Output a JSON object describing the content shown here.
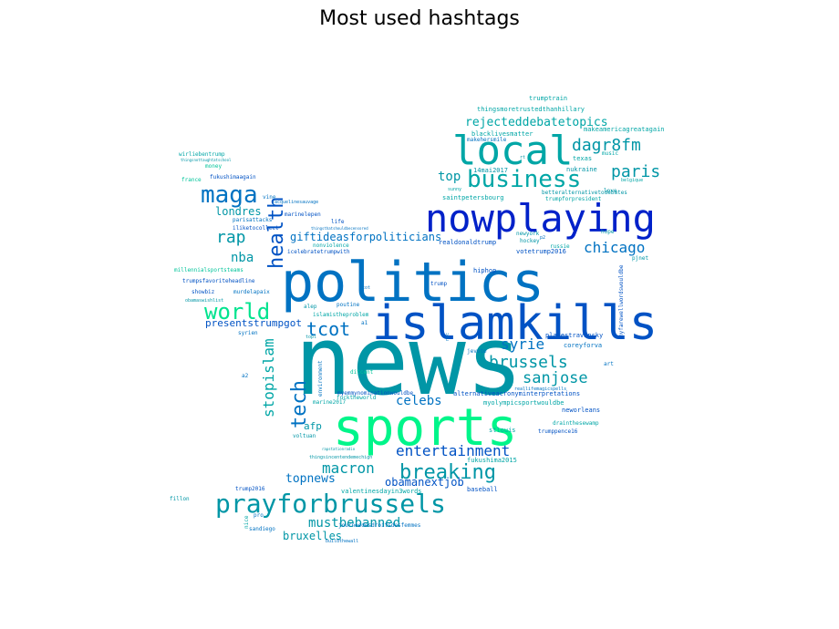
{
  "chart_data": {
    "type": "wordcloud",
    "title": "Most used hashtags",
    "palette": [
      "#0021c9",
      "#0052c4",
      "#0072c2",
      "#008fb0",
      "#00a6a6",
      "#00c49a",
      "#00e38e",
      "#00f58a"
    ],
    "words": [
      {
        "text": "news",
        "weight": 100,
        "color": "#0096a6"
      },
      {
        "text": "politics",
        "weight": 92,
        "color": "#0072c2"
      },
      {
        "text": "sports",
        "weight": 76,
        "color": "#00f58a"
      },
      {
        "text": "islamkills",
        "weight": 66,
        "color": "#0052c4"
      },
      {
        "text": "nowplaying",
        "weight": 52,
        "color": "#0021c9"
      },
      {
        "text": "local",
        "weight": 50,
        "color": "#00a6a6"
      },
      {
        "text": "prayforbrussels",
        "weight": 34,
        "color": "#0096a6"
      },
      {
        "text": "business",
        "weight": 30,
        "color": "#00a6a6"
      },
      {
        "text": "maga",
        "weight": 30,
        "color": "#0072c2"
      },
      {
        "text": "world",
        "weight": 28,
        "color": "#00e38e"
      },
      {
        "text": "breaking",
        "weight": 24,
        "color": "#0096a6"
      },
      {
        "text": "health",
        "weight": 24,
        "color": "#0052c4"
      },
      {
        "text": "tech",
        "weight": 22,
        "color": "#0072c2"
      },
      {
        "text": "tcot",
        "weight": 22,
        "color": "#0072c2"
      },
      {
        "text": "dagr8fm",
        "weight": 20,
        "color": "#0096a6"
      },
      {
        "text": "paris",
        "weight": 20,
        "color": "#0096a6"
      },
      {
        "text": "rap",
        "weight": 20,
        "color": "#0096a6"
      },
      {
        "text": "sanjose",
        "weight": 20,
        "color": "#0096a6"
      },
      {
        "text": "brussels",
        "weight": 20,
        "color": "#0096a6"
      },
      {
        "text": "macron",
        "weight": 20,
        "color": "#0096a6"
      },
      {
        "text": "entertainment",
        "weight": 20,
        "color": "#0052c4"
      },
      {
        "text": "stopislam",
        "weight": 18,
        "color": "#00a6a6"
      },
      {
        "text": "syrie",
        "weight": 18,
        "color": "#0072c2"
      },
      {
        "text": "chicago",
        "weight": 18,
        "color": "#0072c2"
      },
      {
        "text": "mustbebanned",
        "weight": 18,
        "color": "#0096a6"
      },
      {
        "text": "rejecteddebatetopics",
        "weight": 16,
        "color": "#00a6a6"
      },
      {
        "text": "top",
        "weight": 16,
        "color": "#0096a6"
      },
      {
        "text": "nba",
        "weight": 16,
        "color": "#0096a6"
      },
      {
        "text": "celebs",
        "weight": 16,
        "color": "#0072c2"
      },
      {
        "text": "topnews",
        "weight": 16,
        "color": "#0072c2"
      },
      {
        "text": "londres",
        "weight": 14,
        "color": "#0096a6"
      },
      {
        "text": "giftideasforpoliticians",
        "weight": 14,
        "color": "#0072c2"
      },
      {
        "text": "bruxelles",
        "weight": 14,
        "color": "#0096a6"
      },
      {
        "text": "obamanextjob",
        "weight": 14,
        "color": "#0052c4"
      },
      {
        "text": "afp",
        "weight": 14,
        "color": "#0096a6"
      },
      {
        "text": "presentstrumpgot",
        "weight": 12,
        "color": "#0052c4"
      },
      {
        "text": "trumptrain",
        "weight": 8,
        "color": "#00a6a6"
      },
      {
        "text": "thingsmoretrustedthanhillary",
        "weight": 8,
        "color": "#00a6a6"
      },
      {
        "text": "makeamericagreatagain",
        "weight": 8,
        "color": "#00a6a6"
      },
      {
        "text": "blacklivesmatter",
        "weight": 8,
        "color": "#00a6a6"
      },
      {
        "text": "makehersmile",
        "weight": 7,
        "color": "#0072c2"
      },
      {
        "text": "14mai2017",
        "weight": 7,
        "color": "#0096a6"
      },
      {
        "text": "texas",
        "weight": 7,
        "color": "#00a6a6"
      },
      {
        "text": "nukraine",
        "weight": 7,
        "color": "#0096a6"
      },
      {
        "text": "belgique",
        "weight": 6,
        "color": "#00a6a6"
      },
      {
        "text": "betteralternativetodebates",
        "weight": 7,
        "color": "#0096a6"
      },
      {
        "text": "saintpetersbourg",
        "weight": 7,
        "color": "#00a6a6"
      },
      {
        "text": "trumpforpresident",
        "weight": 7,
        "color": "#00a6a6"
      },
      {
        "text": "newyork",
        "weight": 7,
        "color": "#0096a6"
      },
      {
        "text": "hockey",
        "weight": 7,
        "color": "#0096a6"
      },
      {
        "text": "russie",
        "weight": 7,
        "color": "#00a6a6"
      },
      {
        "text": "votetrump2016",
        "weight": 7,
        "color": "#0052c4"
      },
      {
        "text": "realdonaldtrump",
        "weight": 7,
        "color": "#0052c4"
      },
      {
        "text": "hiphop",
        "weight": 7,
        "color": "#0052c4"
      },
      {
        "text": "pjnet",
        "weight": 7,
        "color": "#0096a6"
      },
      {
        "text": "hope",
        "weight": 7,
        "color": "#0096a6"
      },
      {
        "text": "love",
        "weight": 7,
        "color": "#0096a6"
      },
      {
        "text": "music",
        "weight": 7,
        "color": "#00a6a6"
      },
      {
        "text": "sunny",
        "weight": 6,
        "color": "#00a6a6"
      },
      {
        "text": "placestravinsky",
        "weight": 8,
        "color": "#0052c4"
      },
      {
        "text": "coreyforva",
        "weight": 8,
        "color": "#0072c2"
      },
      {
        "text": "myfarewellwordswouldbe",
        "weight": 6,
        "color": "#0052c4"
      },
      {
        "text": "art",
        "weight": 6,
        "color": "#0072c2"
      },
      {
        "text": "reallifemagicspells",
        "weight": 6,
        "color": "#0072c2"
      },
      {
        "text": "alternativeacronyminterpretations",
        "weight": 7,
        "color": "#0052c4"
      },
      {
        "text": "myolympicsportwouldbe",
        "weight": 7,
        "color": "#00a6a6"
      },
      {
        "text": "drainthesewamp",
        "weight": 7,
        "color": "#00a6a6"
      },
      {
        "text": "neworleans",
        "weight": 7,
        "color": "#0052c4"
      },
      {
        "text": "stlouis",
        "weight": 7,
        "color": "#00a6a6"
      },
      {
        "text": "trumppence16",
        "weight": 7,
        "color": "#0052c4"
      },
      {
        "text": "fukushima2015",
        "weight": 7,
        "color": "#00a6a6"
      },
      {
        "text": "baseball",
        "weight": 7,
        "color": "#0052c4"
      },
      {
        "text": "valentinesdayin3words",
        "weight": 7,
        "color": "#00a6a6"
      },
      {
        "text": "journeedesdroitsdesfemmes",
        "weight": 6,
        "color": "#0072c2"
      },
      {
        "text": "buildthewall",
        "weight": 5,
        "color": "#0072c2"
      },
      {
        "text": "fukushimaagain",
        "weight": 7,
        "color": "#0052c4"
      },
      {
        "text": "france",
        "weight": 7,
        "color": "#00c49a"
      },
      {
        "text": "money",
        "weight": 7,
        "color": "#00c49a"
      },
      {
        "text": "vine",
        "weight": 7,
        "color": "#0072c2"
      },
      {
        "text": "jacquelinesauvage",
        "weight": 5,
        "color": "#0072c2"
      },
      {
        "text": "parisattacks",
        "weight": 7,
        "color": "#0072c2"
      },
      {
        "text": "iliketocollect",
        "weight": 7,
        "color": "#0052c4"
      },
      {
        "text": "marinelepen",
        "weight": 7,
        "color": "#0052c4"
      },
      {
        "text": "life",
        "weight": 7,
        "color": "#0052c4"
      },
      {
        "text": "thingsthatshouldbecensored",
        "weight": 5,
        "color": "#0072c2"
      },
      {
        "text": "nonviolence",
        "weight": 7,
        "color": "#00a6a6"
      },
      {
        "text": "icelebratetrumpwith",
        "weight": 7,
        "color": "#0052c4"
      },
      {
        "text": "millennialsportsteams",
        "weight": 7,
        "color": "#00c49a"
      },
      {
        "text": "trumpsfavoriteheadline",
        "weight": 7,
        "color": "#0052c4"
      },
      {
        "text": "showbiz",
        "weight": 7,
        "color": "#0052c4"
      },
      {
        "text": "murdelapaix",
        "weight": 7,
        "color": "#0072c2"
      },
      {
        "text": "obamaswishlist",
        "weight": 6,
        "color": "#0096a6"
      },
      {
        "text": "syrien",
        "weight": 7,
        "color": "#0072c2"
      },
      {
        "text": "a2",
        "weight": 7,
        "color": "#0072c2"
      },
      {
        "text": "a1",
        "weight": 7,
        "color": "#0072c2"
      },
      {
        "text": "topl",
        "weight": 6,
        "color": "#0096a6"
      },
      {
        "text": "alep",
        "weight": 7,
        "color": "#0096a6"
      },
      {
        "text": "poutine",
        "weight": 7,
        "color": "#0072c2"
      },
      {
        "text": "islamistheproblem",
        "weight": 7,
        "color": "#00a6a6"
      },
      {
        "text": "trump",
        "weight": 7,
        "color": "#0052c4"
      },
      {
        "text": "myemmynominationwouldbe",
        "weight": 7,
        "color": "#0052c4"
      },
      {
        "text": "marine2017",
        "weight": 7,
        "color": "#00a6a6"
      },
      {
        "text": "fucktheworld",
        "weight": 7,
        "color": "#00a6a6"
      },
      {
        "text": "environment",
        "weight": 7,
        "color": "#0072c2"
      },
      {
        "text": "ditcent",
        "weight": 7,
        "color": "#00c49a"
      },
      {
        "text": "jevote",
        "weight": 7,
        "color": "#0072c2"
      },
      {
        "text": "voltuan",
        "weight": 7,
        "color": "#0096a6"
      },
      {
        "text": "thingsincentendemechigh",
        "weight": 6,
        "color": "#0096a6"
      },
      {
        "text": "rapstationradio",
        "weight": 5,
        "color": "#0096a6"
      },
      {
        "text": "trump2016",
        "weight": 7,
        "color": "#0052c4"
      },
      {
        "text": "fillon",
        "weight": 7,
        "color": "#0096a6"
      },
      {
        "text": "nice",
        "weight": 7,
        "color": "#00a6a6"
      },
      {
        "text": "pro",
        "weight": 7,
        "color": "#0072c2"
      },
      {
        "text": "sandiego",
        "weight": 7,
        "color": "#0072c2"
      },
      {
        "text": "wirliebentrump",
        "weight": 7,
        "color": "#00a6a6"
      },
      {
        "text": "thingsnottaughtatschool",
        "weight": 5,
        "color": "#0096a6"
      },
      {
        "text": "ccot",
        "weight": 6,
        "color": "#0072c2"
      },
      {
        "text": "nyc",
        "weight": 5,
        "color": "#0072c2"
      },
      {
        "text": "p2",
        "weight": 6,
        "color": "#0072c2"
      },
      {
        "text": "rt",
        "weight": 6,
        "color": "#0096a6"
      }
    ]
  }
}
